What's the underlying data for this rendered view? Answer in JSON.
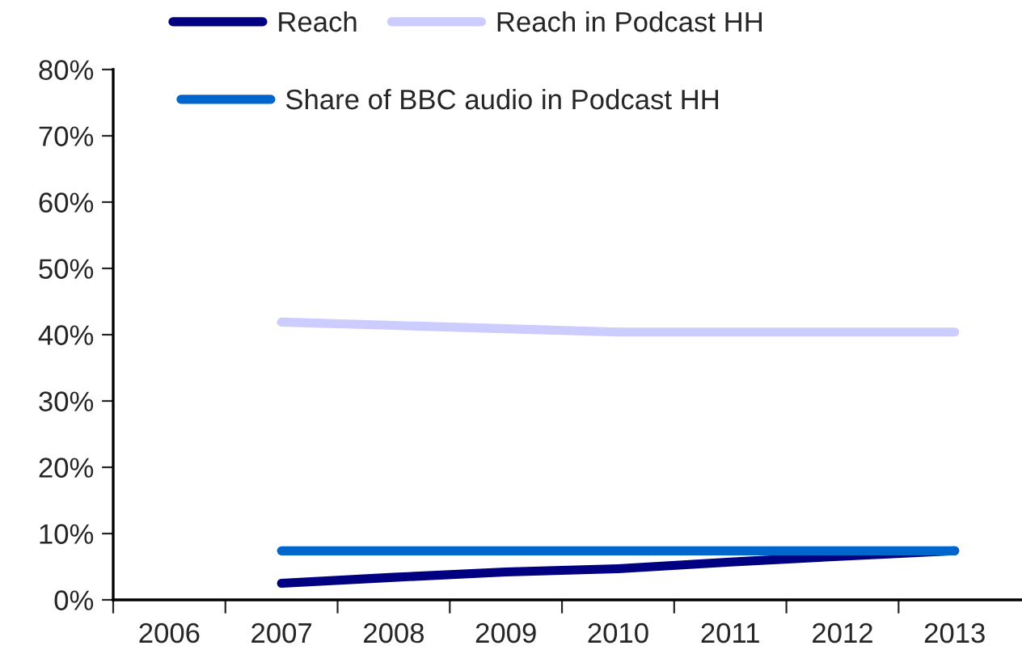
{
  "chart_data": {
    "type": "line",
    "categories": [
      "2006",
      "2007",
      "2008",
      "2009",
      "2010",
      "2011",
      "2012",
      "2013"
    ],
    "series": [
      {
        "name": "Reach",
        "color": "#000080",
        "values": [
          null,
          2.5,
          3.4,
          4.2,
          4.7,
          5.7,
          6.6,
          7.4
        ]
      },
      {
        "name": "Reach in Podcast HH",
        "color": "#ccccff",
        "values": [
          null,
          41.9,
          41.4,
          40.9,
          40.4,
          40.4,
          40.4,
          40.4
        ]
      },
      {
        "name": "Share of BBC audio in Podcast HH",
        "color": "#0066cc",
        "values": [
          null,
          7.4,
          7.4,
          7.4,
          7.4,
          7.4,
          7.4,
          7.4
        ]
      }
    ],
    "ylim": [
      0,
      80
    ],
    "yticks": [
      {
        "value": 0,
        "label": "0%"
      },
      {
        "value": 10,
        "label": "10%"
      },
      {
        "value": 20,
        "label": "20%"
      },
      {
        "value": 30,
        "label": "30%"
      },
      {
        "value": 40,
        "label": "40%"
      },
      {
        "value": 50,
        "label": "50%"
      },
      {
        "value": 60,
        "label": "60%"
      },
      {
        "value": 70,
        "label": "70%"
      },
      {
        "value": 80,
        "label": "80%"
      }
    ],
    "grid": false,
    "legend": "top",
    "marker": "none",
    "line_style": "solid"
  }
}
